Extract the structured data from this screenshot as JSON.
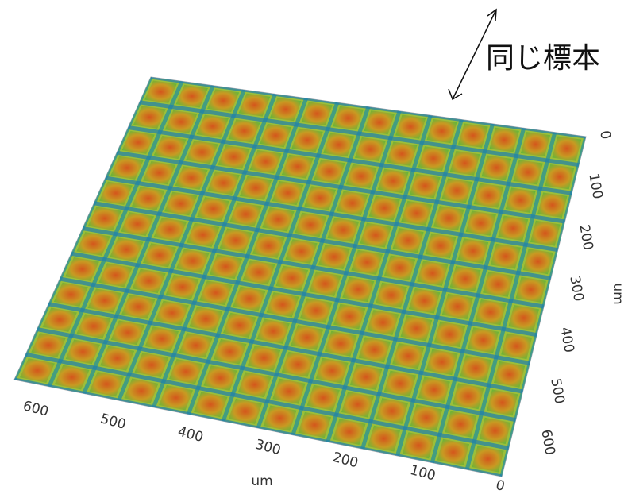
{
  "annotation": "同じ標本",
  "x_axis": {
    "label": "um",
    "ticks": [
      600,
      500,
      400,
      300,
      200,
      100,
      0
    ]
  },
  "y_axis": {
    "label": "um",
    "ticks": [
      0,
      100,
      200,
      300,
      400,
      500,
      600
    ]
  }
}
